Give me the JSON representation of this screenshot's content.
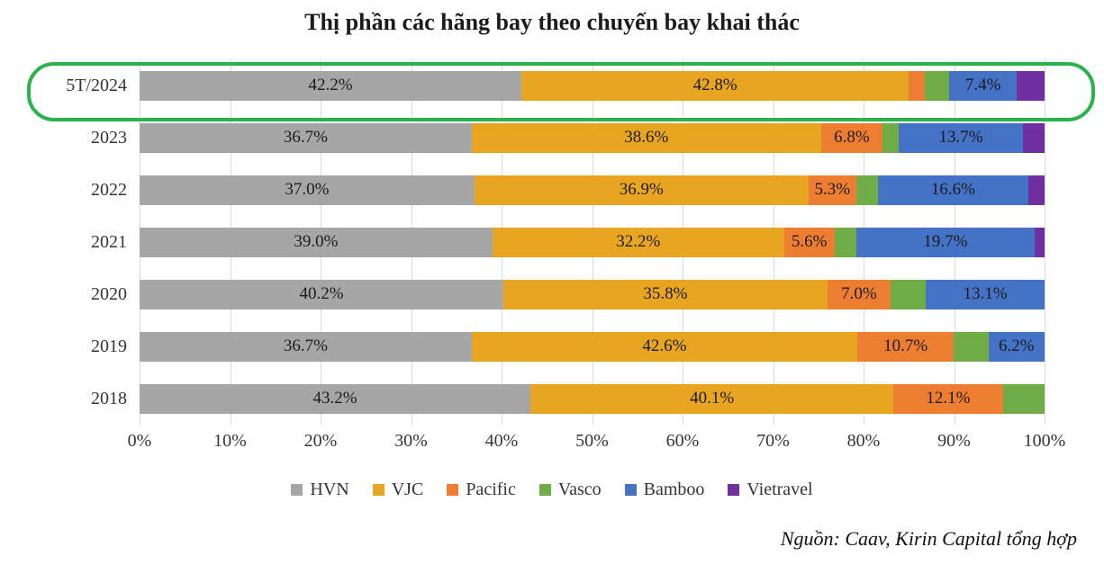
{
  "title": "Thị phần các hãng bay theo chuyến bay khai thác",
  "source_note": "Nguồn: Caav, Kirin Capital tổng hợp",
  "highlight": {
    "color": "#2ab24b",
    "target_category": "5T/2024"
  },
  "axis": {
    "x_ticks": [
      "0%",
      "10%",
      "20%",
      "30%",
      "40%",
      "50%",
      "60%",
      "70%",
      "80%",
      "90%",
      "100%"
    ]
  },
  "chart_data": {
    "type": "bar",
    "orientation": "horizontal",
    "stacked": true,
    "grid": true,
    "legend_position": "bottom",
    "xlim": [
      0,
      100
    ],
    "x_tick_step": 10,
    "label_min": 5,
    "categories": [
      "5T/2024",
      "2023",
      "2022",
      "2021",
      "2020",
      "2019",
      "2018"
    ],
    "series": [
      {
        "name": "HVN",
        "color": "#a6a6a6",
        "values": [
          42.2,
          36.7,
          37.0,
          39.0,
          40.2,
          36.7,
          43.2
        ]
      },
      {
        "name": "VJC",
        "color": "#e7a522",
        "values": [
          42.8,
          38.6,
          36.9,
          32.2,
          35.8,
          42.6,
          40.1
        ]
      },
      {
        "name": "Pacific",
        "color": "#ed7d31",
        "values": [
          1.8,
          6.8,
          5.3,
          5.6,
          7.0,
          10.7,
          12.1
        ]
      },
      {
        "name": "Vasco",
        "color": "#70ad47",
        "values": [
          2.7,
          1.8,
          2.4,
          2.4,
          3.9,
          3.8,
          4.6
        ]
      },
      {
        "name": "Bamboo",
        "color": "#4472c4",
        "values": [
          7.4,
          13.7,
          16.6,
          19.7,
          13.1,
          6.2,
          0
        ]
      },
      {
        "name": "Vietravel",
        "color": "#7030a0",
        "values": [
          3.1,
          2.4,
          1.8,
          1.1,
          0,
          0,
          0
        ]
      }
    ]
  }
}
